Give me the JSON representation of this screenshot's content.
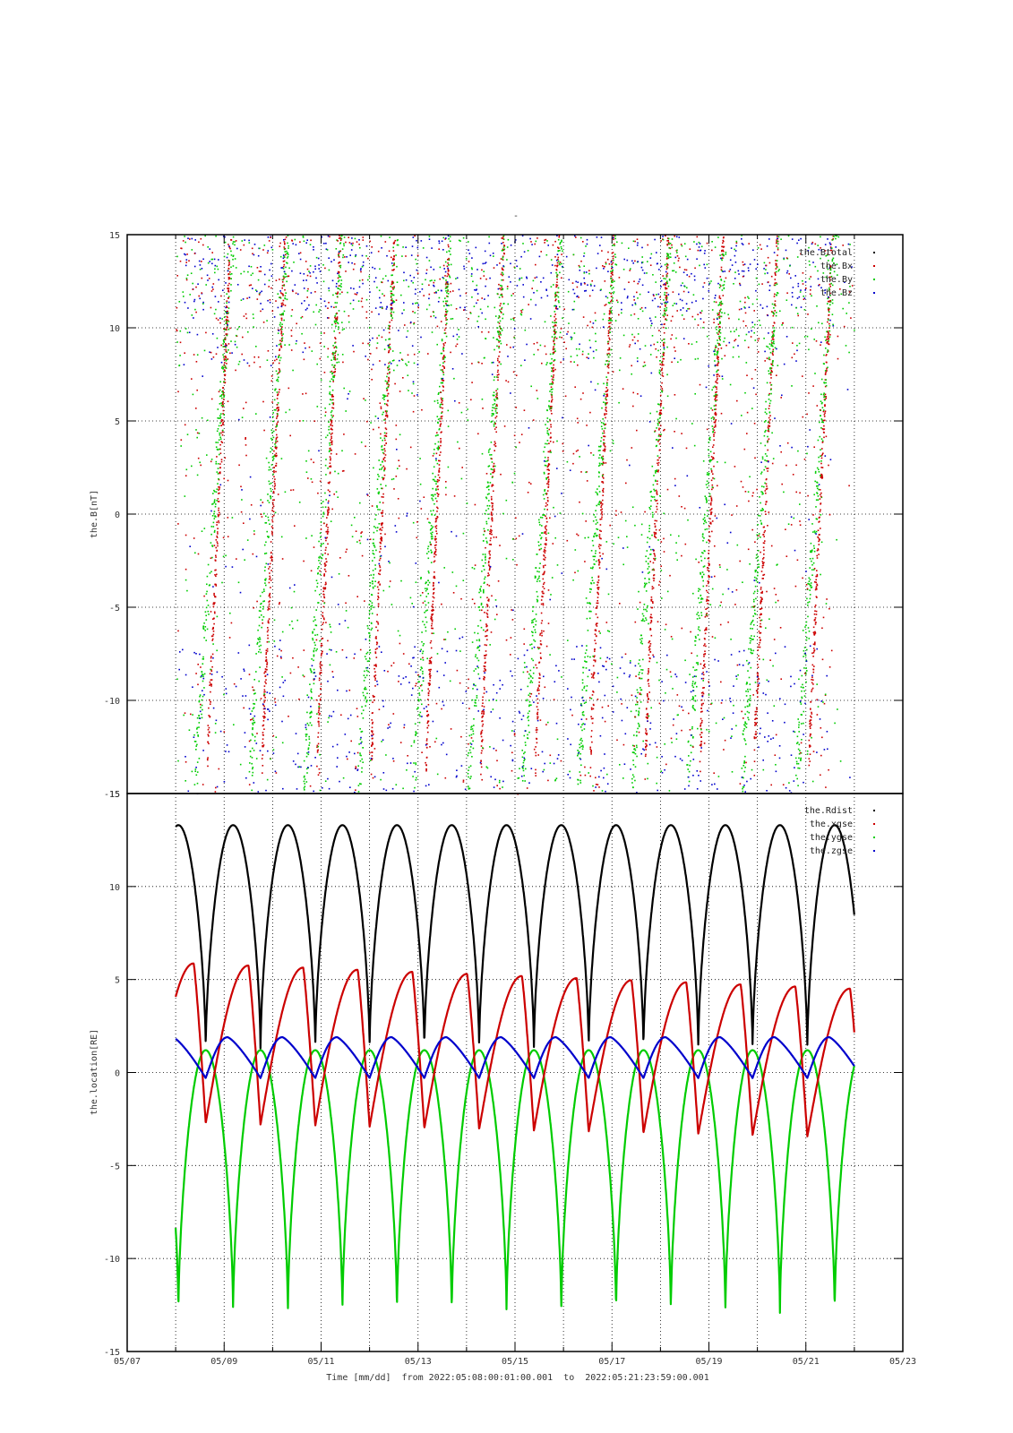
{
  "chart_data": [
    {
      "type": "scatter",
      "title": "-",
      "ylabel": "the.B[nT]",
      "ylim": [
        -15,
        15
      ],
      "yticks": [
        -15,
        -10,
        -5,
        0,
        5,
        10,
        15
      ],
      "xlim": [
        "2022-05-07",
        "2022-05-23"
      ],
      "grid": true,
      "legend_placement": "top-right",
      "series": [
        {
          "name": "the.Btotal",
          "color": "#000000"
        },
        {
          "name": "the.Bx",
          "color": "#cc0000"
        },
        {
          "name": "the.By",
          "color": "#00cc00"
        },
        {
          "name": "the.Bz",
          "color": "#0000cc"
        }
      ],
      "note_values": "Dense noisy scatter of magnetic-field components; values shown are approximate."
    },
    {
      "type": "line",
      "ylabel": "the.location[RE]",
      "ylim": [
        -15,
        15
      ],
      "yticks": [
        -15,
        -10,
        -5,
        0,
        5,
        10,
        15
      ],
      "xlim": [
        "2022-05-07",
        "2022-05-23"
      ],
      "xticks": [
        "05/07",
        "05/09",
        "05/11",
        "05/13",
        "05/15",
        "05/17",
        "05/19",
        "05/21",
        "05/23"
      ],
      "xlabel": "Time [mm/dd]  from 2022:05:08:00:01:00.001  to  2022:05:21:23:59:00.001",
      "grid": true,
      "legend_placement": "top-right",
      "orbit": {
        "start": "2022-05-08T00:01",
        "end": "2022-05-21T23:59",
        "perigee_times_day_of_may": [
          8.62,
          9.75,
          10.88,
          12.0,
          13.13,
          14.26,
          15.39,
          16.52,
          17.65,
          18.78,
          19.9,
          21.03
        ],
        "apogee_rdist": 13.3,
        "perigee_rdist": 1.2
      },
      "series": [
        {
          "name": "the.Rdist",
          "color": "#000000",
          "range": [
            1.2,
            13.3
          ]
        },
        {
          "name": "the.xgse",
          "color": "#cc0000",
          "range": [
            -3.5,
            5.9
          ]
        },
        {
          "name": "the.ygse",
          "color": "#00cc00",
          "range": [
            -13.1,
            1.2
          ]
        },
        {
          "name": "the.zgse",
          "color": "#0000cc",
          "range": [
            -0.3,
            1.9
          ]
        }
      ]
    }
  ]
}
